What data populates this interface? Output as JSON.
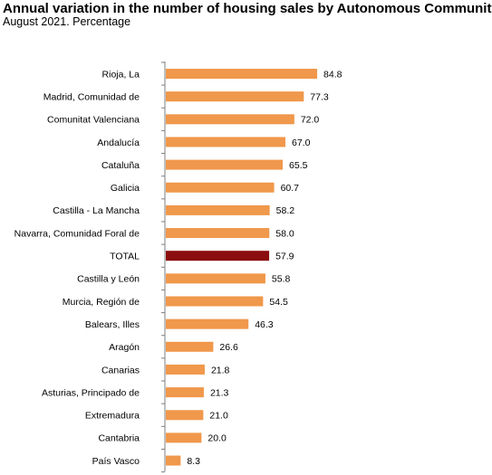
{
  "chart_data": {
    "type": "bar",
    "orientation": "horizontal",
    "title": "Annual variation in the number of housing sales by Autonomous Community",
    "subtitle": "August 2021. Percentage",
    "categories": [
      "Rioja, La",
      "Madrid, Comunidad de",
      "Comunitat Valenciana",
      "Andalucía",
      "Cataluña",
      "Galicia",
      "Castilla - La Mancha",
      "Navarra, Comunidad Foral de",
      "TOTAL",
      "Castilla y León",
      "Murcia, Región de",
      "Balears, Illes",
      "Aragón",
      "Canarias",
      "Asturias, Principado de",
      "Extremadura",
      "Cantabria",
      "País Vasco"
    ],
    "values": [
      84.8,
      77.3,
      72.0,
      67.0,
      65.5,
      60.7,
      58.2,
      58.0,
      57.9,
      55.8,
      54.5,
      46.3,
      26.6,
      21.8,
      21.3,
      21.0,
      20.0,
      8.3
    ],
    "value_labels": [
      "84.8",
      "77.3",
      "72.0",
      "67.0",
      "65.5",
      "60.7",
      "58.2",
      "58.0",
      "57.9",
      "55.8",
      "54.5",
      "46.3",
      "26.6",
      "21.8",
      "21.3",
      "21.0",
      "20.0",
      "8.3"
    ],
    "highlight_category": "TOTAL",
    "colors": {
      "bar": "#f0984b",
      "highlight": "#8b0d0d",
      "axis": "#7f7f7f"
    },
    "xlim": [
      0,
      100
    ],
    "grid": false,
    "legend": "none"
  }
}
